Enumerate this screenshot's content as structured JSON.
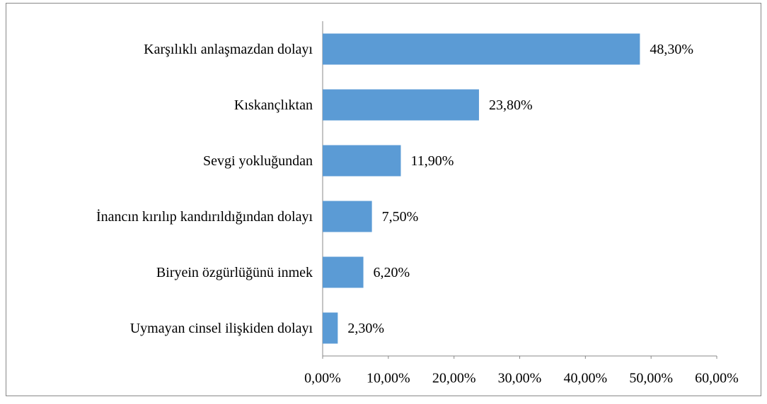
{
  "chart_data": {
    "type": "bar",
    "orientation": "horizontal",
    "categories": [
      "Karşılıklı anlaşmazdan dolayı",
      "Kıskançlıktan",
      "Sevgi yokluğundan",
      "İnancın kırılıp kandırıldığından dolayı",
      "Biryein özgürlüğünü inmek",
      "Uymayan cinsel ilişkiden dolayı"
    ],
    "values": [
      48.3,
      23.8,
      11.9,
      7.5,
      6.2,
      2.3
    ],
    "value_labels": [
      "48,30%",
      "23,80%",
      "11,90%",
      "7,50%",
      "6,20%",
      "2,30%"
    ],
    "color": "#5b9bd5",
    "xlim": [
      0,
      60
    ],
    "xticks": [
      {
        "value": 0,
        "label": "0,00%"
      },
      {
        "value": 10,
        "label": "10,00%"
      },
      {
        "value": 20,
        "label": "20,00%"
      },
      {
        "value": 30,
        "label": "30,00%"
      },
      {
        "value": 40,
        "label": "40,00%"
      },
      {
        "value": 50,
        "label": "50,00%"
      },
      {
        "value": 60,
        "label": "60,00%"
      }
    ],
    "grid": false
  }
}
